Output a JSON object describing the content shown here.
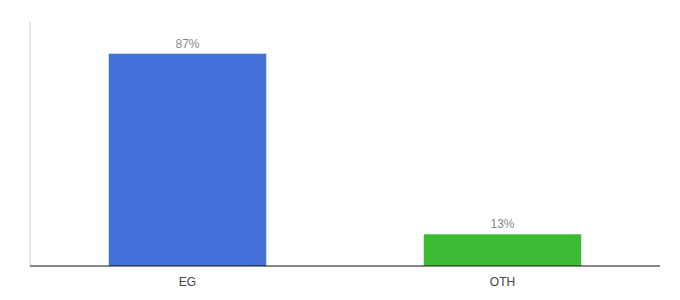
{
  "chart_data": {
    "type": "bar",
    "categories": [
      "EG",
      "OTH"
    ],
    "values": [
      87,
      13
    ],
    "value_labels": [
      "87%",
      "13%"
    ],
    "colors": [
      "#4472db",
      "#3dbb35"
    ],
    "ylim": [
      0,
      100
    ],
    "yticks": [],
    "data_labels": true,
    "tick_labels": "x",
    "grid": false
  }
}
